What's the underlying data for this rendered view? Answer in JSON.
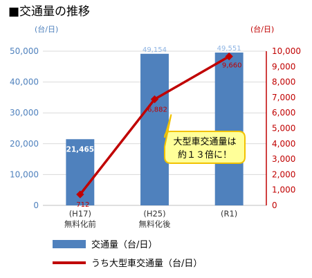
{
  "chart_data": {
    "type": "bar",
    "title": "■交通量の推移",
    "y_unit_left": "(台/日)",
    "y_unit_right": "(台/日)",
    "categories": [
      [
        "(H17)",
        "無料化前"
      ],
      [
        "(H25)",
        "無料化後"
      ],
      [
        "(R1)",
        ""
      ]
    ],
    "series": [
      {
        "name": "交通量（台/日）",
        "type": "bar",
        "axis": "left",
        "values": [
          21465,
          49154,
          49551
        ],
        "labels": [
          "21,465",
          "49,154",
          "49,551"
        ]
      },
      {
        "name": "うち大型車交通量（台/日）",
        "type": "line",
        "axis": "right",
        "values": [
          712,
          6882,
          9660
        ],
        "labels": [
          "712",
          "6,882",
          "9,660"
        ]
      }
    ],
    "ylim_left": [
      0,
      50000
    ],
    "ylim_right": [
      0,
      10000
    ],
    "yticks_left": [
      "0",
      "10,000",
      "20,000",
      "30,000",
      "40,000",
      "50,000"
    ],
    "yticks_right": [
      "0",
      "1,000",
      "2,000",
      "3,000",
      "4,000",
      "5,000",
      "6,000",
      "7,000",
      "8,000",
      "9,000",
      "10,000"
    ],
    "grid": true,
    "legend_position": "bottom",
    "annotation": {
      "lines": [
        "大型車交通量は",
        "約１３倍に！"
      ]
    },
    "colors": {
      "bar": "#4F81BD",
      "line": "#C00000",
      "callout_fill": "#FFFF99",
      "callout_border": "#F2C200"
    }
  }
}
